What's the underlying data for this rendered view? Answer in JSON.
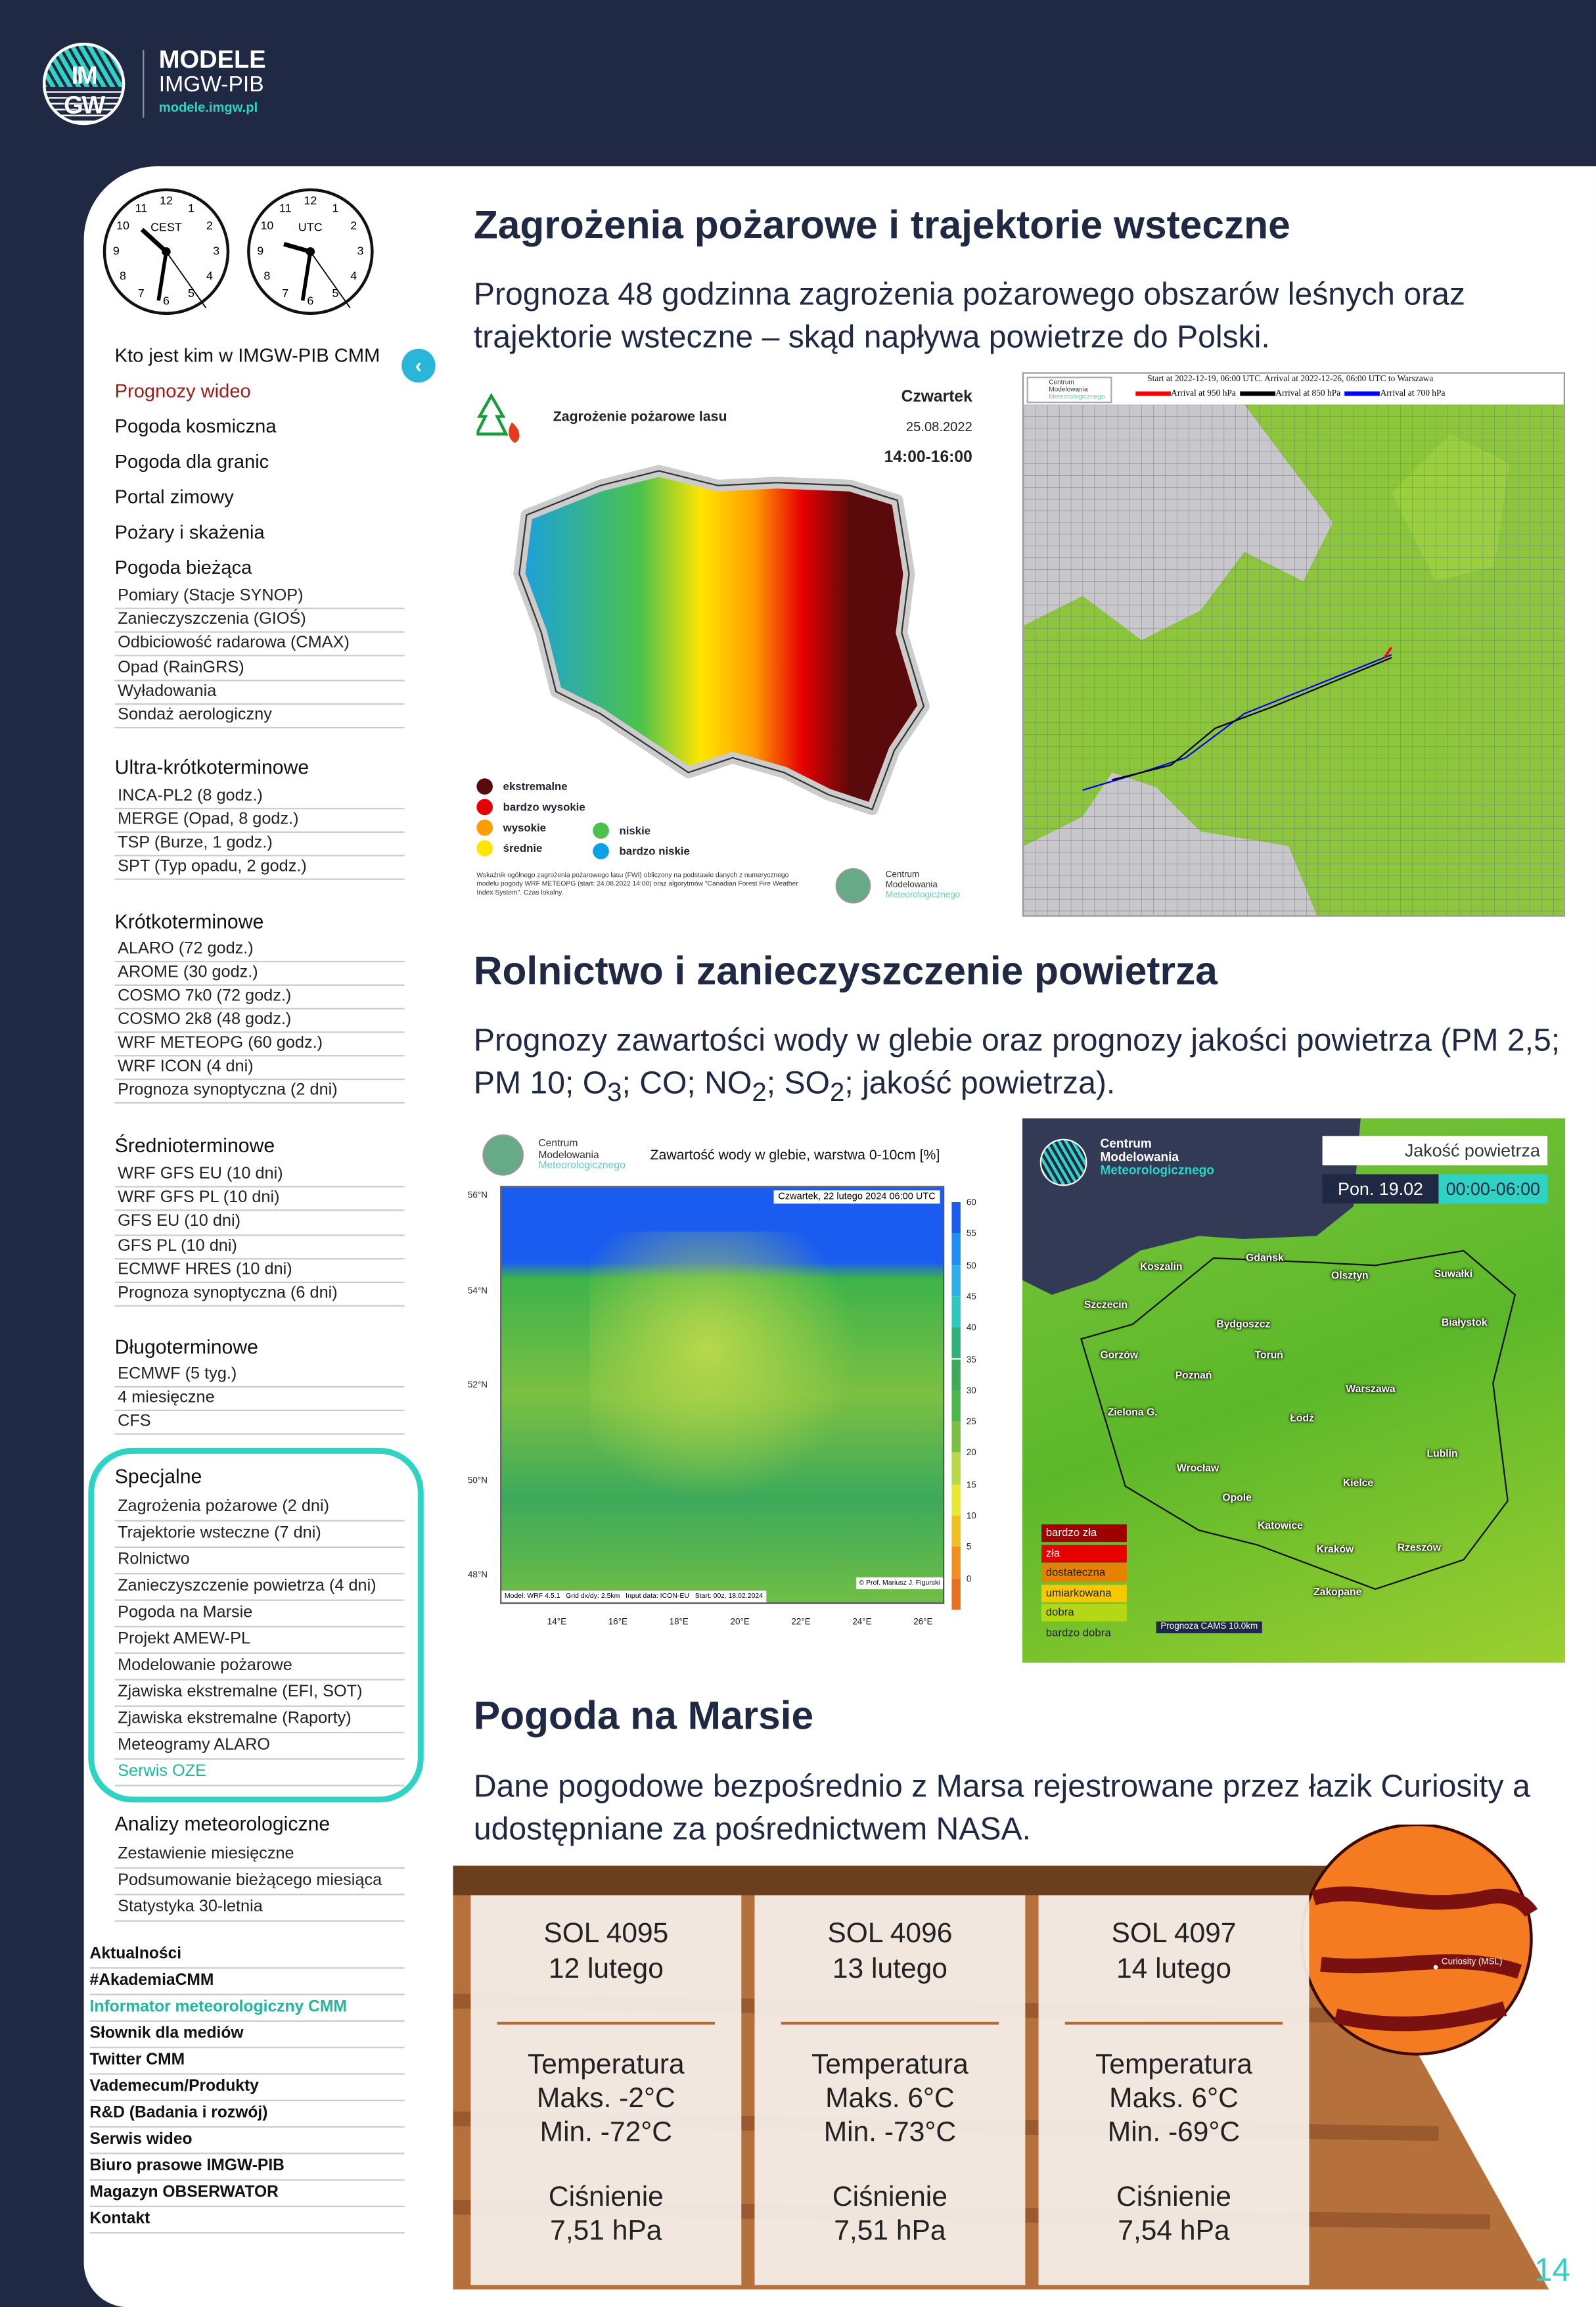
{
  "header": {
    "brand_title": "MODELE",
    "brand_subtitle": "IMGW-PIB",
    "brand_url": "modele.imgw.pl",
    "logo_text_top": "IM",
    "logo_text_bottom": "GW"
  },
  "clocks": [
    {
      "label": "CEST",
      "numbers": [
        "12",
        "1",
        "2",
        "3",
        "4",
        "5",
        "6",
        "7",
        "8",
        "9",
        "10",
        "11"
      ]
    },
    {
      "label": "UTC",
      "numbers": [
        "12",
        "1",
        "2",
        "3",
        "4",
        "5",
        "6",
        "7",
        "8",
        "9",
        "10",
        "11"
      ]
    }
  ],
  "sidebar": {
    "top_items": [
      {
        "label": "Kto jest kim w IMGW-PIB CMM"
      },
      {
        "label": "Prognozy wideo",
        "active": true
      },
      {
        "label": "Pogoda kosmiczna"
      },
      {
        "label": "Pogoda dla granic"
      },
      {
        "label": "Portal zimowy"
      },
      {
        "label": "Pożary i skażenia"
      },
      {
        "label": "Pogoda bieżąca"
      }
    ],
    "biezaca": [
      "Pomiary (Stacje SYNOP)",
      "Zanieczyszczenia (GIOŚ)",
      "Odbiciowość radarowa (CMAX)",
      "Opad (RainGRS)",
      "Wyładowania",
      "Sondaż aerologiczny"
    ],
    "groups": [
      {
        "title": "Ultra-krótkoterminowe",
        "items": [
          "INCA-PL2 (8 godz.)",
          "MERGE (Opad, 8 godz.)",
          "TSP (Burze, 1 godz.)",
          "SPT (Typ opadu, 2 godz.)"
        ]
      },
      {
        "title": "Krótkoterminowe",
        "items": [
          "ALARO (72 godz.)",
          "AROME (30 godz.)",
          "COSMO 7k0 (72 godz.)",
          "COSMO 2k8 (48 godz.)",
          "WRF METEOPG (60 godz.)",
          "WRF ICON (4 dni)",
          "Prognoza synoptyczna (2 dni)"
        ]
      },
      {
        "title": "Średnioterminowe",
        "items": [
          "WRF GFS EU (10 dni)",
          "WRF GFS PL (10 dni)",
          "GFS EU (10 dni)",
          "GFS PL (10 dni)",
          "ECMWF HRES (10 dni)",
          "Prognoza synoptyczna (6 dni)"
        ]
      },
      {
        "title": "Długoterminowe",
        "items": [
          "ECMWF (5 tyg.)",
          "4 miesięczne",
          "CFS"
        ]
      },
      {
        "title": "Specjalne",
        "items": [
          "Zagrożenia pożarowe (2 dni)",
          "Trajektorie wsteczne (7 dni)",
          "Rolnictwo",
          "Zanieczyszczenie powietrza (4 dni)",
          "Pogoda na Marsie",
          "Projekt AMEW-PL",
          "Modelowanie pożarowe",
          "Zjawiska ekstremalne (EFI, SOT)",
          "Zjawiska ekstremalne (Raporty)",
          "Meteogramy ALARO",
          "Serwis OZE"
        ],
        "highlight": "Serwis OZE"
      },
      {
        "title": "Analizy meteorologiczne",
        "items": [
          "Zestawienie miesięczne",
          "Podsumowanie bieżącego miesiąca",
          "Statystyka 30-letnia"
        ]
      }
    ],
    "bottom_links": [
      "Aktualności",
      "#AkademiaCMM",
      "Informator meteorologiczny CMM",
      "Słownik dla mediów",
      "Twitter CMM",
      "Vademecum/Produkty",
      "R&D (Badania i rozwój)",
      "Serwis wideo",
      "Biuro prasowe IMGW-PIB",
      "Magazyn OBSERWATOR",
      "Kontakt"
    ],
    "bottom_highlight": "Informator meteorologiczny CMM",
    "collapse_icon": "chevron-left-icon"
  },
  "sections": [
    {
      "title": "Zagrożenia pożarowe i trajektorie wsteczne",
      "subtitle": "Prognoza 48 godzinna zagrożenia pożarowego obszarów leśnych oraz trajektorie wsteczne – skąd napływa powietrze do Polski."
    },
    {
      "title": "Rolnictwo i zanieczyszczenie powietrza",
      "subtitle_parts": [
        "Prognozy zawartości wody w glebie oraz prognozy jakości powietrza (PM 2,5; PM 10; O",
        "3",
        "; CO; NO",
        "2",
        "; SO",
        "2",
        "; jakość powietrza)."
      ]
    },
    {
      "title": "Pogoda na Marsie",
      "subtitle": "Dane pogodowe bezpośrednio z Marsa rejestrowane przez łazik Curiosity a udostępniane za pośrednictwem NASA."
    }
  ],
  "fire_map": {
    "title": "Zagrożenie pożarowe lasu",
    "day": "Czwartek",
    "date": "25.08.2022",
    "hours": "14:00-16:00",
    "legend": [
      {
        "label": "ekstremalne",
        "color": "#5a0a0a"
      },
      {
        "label": "bardzo wysokie",
        "color": "#e60000"
      },
      {
        "label": "wysokie",
        "color": "#ff9c00"
      },
      {
        "label": "średnie",
        "color": "#ffe600"
      },
      {
        "label": "niskie",
        "color": "#4cc24c"
      },
      {
        "label": "bardzo niskie",
        "color": "#0aa0e6"
      }
    ],
    "footnote": "Wskaźnik ogólnego zagrożenia pożarowego lasu (FWI) obliczony na podstawie danych z numerycznego modelu pogody WRF METEOPG (start: 24.08.2022 14:00) oraz algorytmów \"Canadian Forest Fire Weather Index System\". Czas lokalny.",
    "org": [
      "Centrum",
      "Modelowania",
      "Meteorologicznego"
    ]
  },
  "trajectory_map": {
    "org": [
      "Centrum",
      "Modelowania",
      "Meteorologicznego"
    ],
    "line1": "Start at 2022-12-19, 06:00 UTC. Arrival at 2022-12-26, 06:00 UTC to Warszawa",
    "legend": [
      {
        "label": "Arrival at 950 hPa",
        "color": "#ff0000"
      },
      {
        "label": "Arrival at 850 hPa",
        "color": "#000000"
      },
      {
        "label": "Arrival at 700 hPa",
        "color": "#0000ff"
      }
    ]
  },
  "soil_map": {
    "org": [
      "Centrum",
      "Modelowania",
      "Meteorologicznego"
    ],
    "title": "Zawartość wody w glebie, warstwa 0-10cm [%]",
    "date": "Czwartek, 22 lutego 2024 06:00 UTC",
    "footer_left": "Model: WRF 4.5.1   Grid dx/dy: 2.5km   Input data: ICON-EU   Start: 00z, 18.02.2024",
    "footer_right": "© Prof. Mariusz J. Figurski",
    "lat_labels": [
      "56°N",
      "54°N",
      "52°N",
      "50°N",
      "48°N"
    ],
    "lon_labels": [
      "14°E",
      "16°E",
      "18°E",
      "20°E",
      "22°E",
      "24°E",
      "26°E"
    ],
    "colorbar": [
      "60",
      "55",
      "50",
      "45",
      "40",
      "35",
      "30",
      "25",
      "20",
      "15",
      "10",
      "5",
      "0"
    ]
  },
  "air_map": {
    "org": [
      "Centrum",
      "Modelowania",
      "Meteorologicznego"
    ],
    "title": "Jakość powietrza",
    "day": "Pon. 19.02",
    "hours": "00:00-06:00",
    "cities": [
      "Koszalin",
      "Gdańsk",
      "Olsztyn",
      "Suwałki",
      "Szczecin",
      "Bydgoszcz",
      "Toruń",
      "Białystok",
      "Gorzów",
      "Poznań",
      "Warszawa",
      "Zielona G.",
      "Łódź",
      "Lublin",
      "Wrocław",
      "Opole",
      "Kielce",
      "Katowice",
      "Kraków",
      "Rzeszów",
      "Zakopane"
    ],
    "legend": [
      {
        "label": "bardzo zła",
        "color": "#a00000"
      },
      {
        "label": "zła",
        "color": "#e60000"
      },
      {
        "label": "dostateczna",
        "color": "#e88000"
      },
      {
        "label": "umiarkowana",
        "color": "#f5c800"
      },
      {
        "label": "dobra",
        "color": "#b5d816"
      },
      {
        "label": "bardzo dobra",
        "color": "#5cb82a"
      }
    ],
    "source": "Prognoza CAMS 10.0km"
  },
  "mars": {
    "rover_label": "Curiosity (MSL)",
    "cards": [
      {
        "sol": "SOL 4095",
        "date": "12 lutego",
        "temp_label": "Temperatura",
        "max": "Maks. -2°C",
        "min": "Min. -72°C",
        "pressure_label": "Ciśnienie",
        "pressure": "7,51 hPa"
      },
      {
        "sol": "SOL 4096",
        "date": "13 lutego",
        "temp_label": "Temperatura",
        "max": "Maks. 6°C",
        "min": "Min. -73°C",
        "pressure_label": "Ciśnienie",
        "pressure": "7,51 hPa"
      },
      {
        "sol": "SOL 4097",
        "date": "14 lutego",
        "temp_label": "Temperatura",
        "max": "Maks. 6°C",
        "min": "Min. -69°C",
        "pressure_label": "Ciśnienie",
        "pressure": "7,54 hPa"
      }
    ]
  },
  "page_number": "14",
  "colors": {
    "navy": "#1f2944",
    "teal": "#2ed3c3",
    "active_red": "#a01a1a",
    "link_teal": "#1fb89c"
  }
}
